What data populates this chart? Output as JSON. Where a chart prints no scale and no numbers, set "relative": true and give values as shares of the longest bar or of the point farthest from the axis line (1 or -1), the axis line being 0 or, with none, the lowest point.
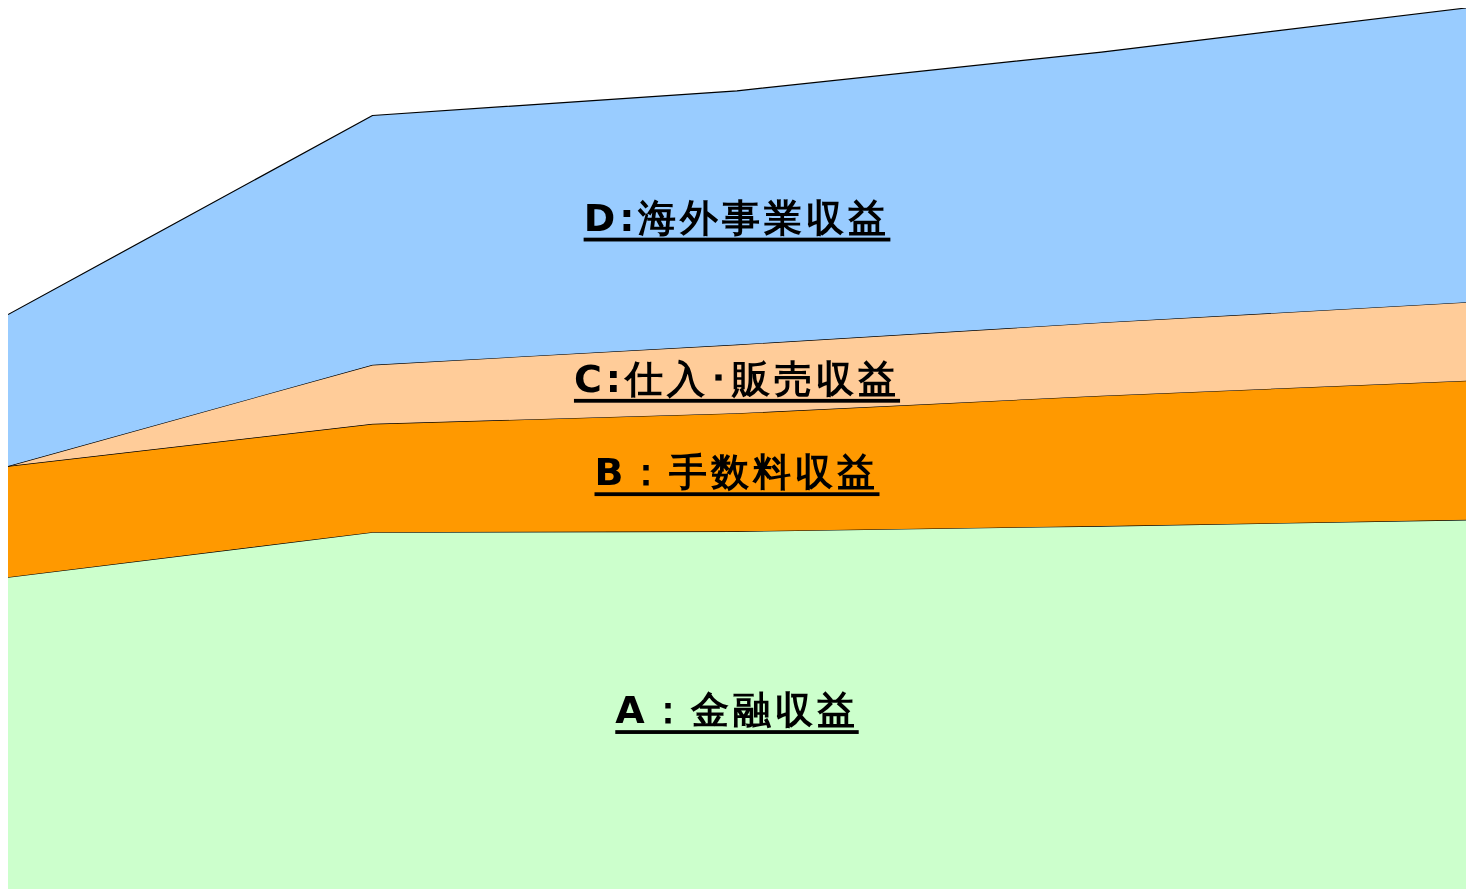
{
  "chart_data": {
    "type": "area",
    "stacked": true,
    "relative": true,
    "categories": [
      null,
      null,
      null,
      null,
      null
    ],
    "series": [
      {
        "name": "A：金融収益",
        "color": "#ccffcc",
        "values": [
          0.354,
          0.405,
          0.406,
          0.412,
          0.419
        ]
      },
      {
        "name": "B：手数料収益",
        "color": "#ff9900",
        "values": [
          0.126,
          0.123,
          0.134,
          0.148,
          0.158
        ]
      },
      {
        "name": "C:仕入･販売収益",
        "color": "#ffcc99",
        "values": [
          0,
          0.067,
          0.078,
          0.083,
          0.089
        ]
      },
      {
        "name": "D:海外事業収益",
        "color": "#99ccff",
        "values": [
          0.172,
          0.283,
          0.288,
          0.307,
          0.334
        ]
      }
    ]
  }
}
